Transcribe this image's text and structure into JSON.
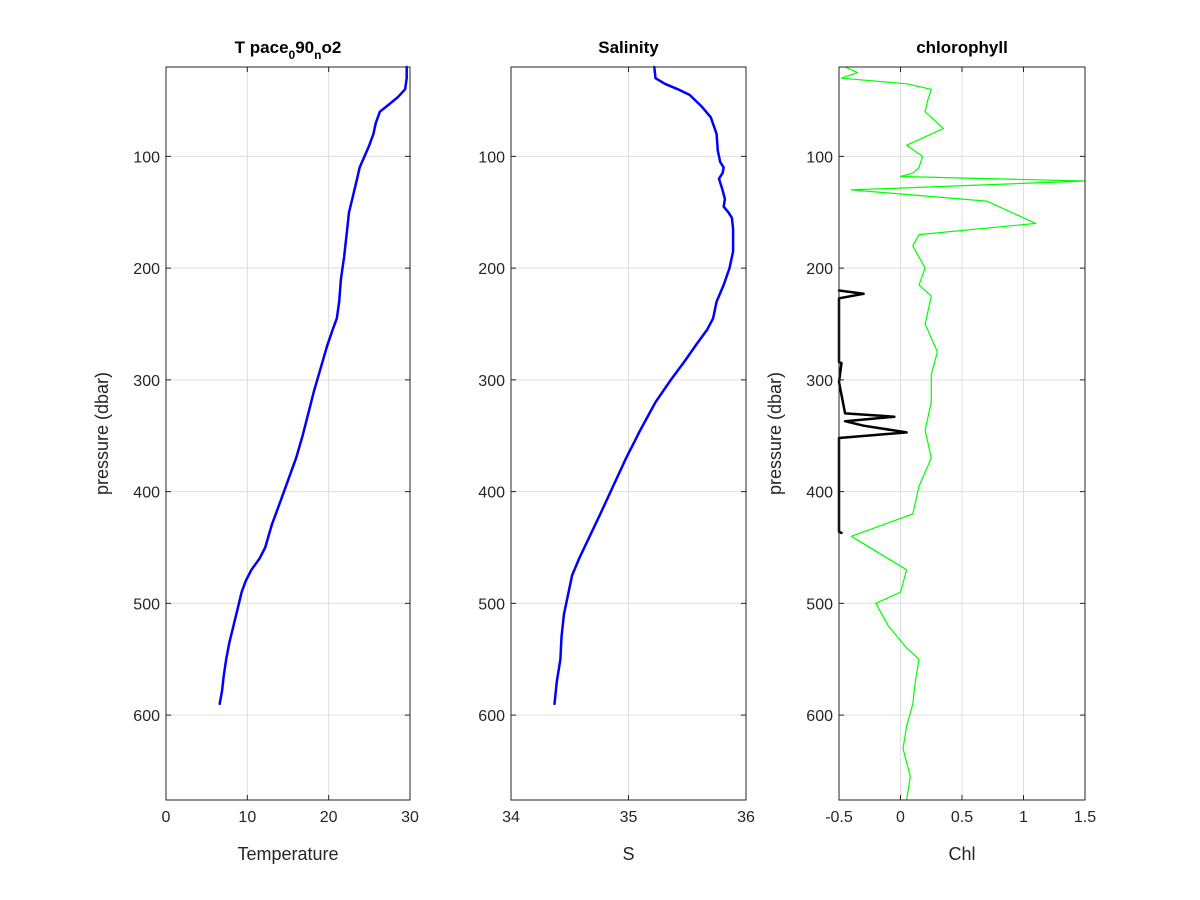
{
  "chart_data": [
    {
      "type": "line",
      "title_parts": [
        {
          "text": "T pace",
          "sub": false
        },
        {
          "text": "0",
          "sub": true
        },
        {
          "text": "90",
          "sub": false
        },
        {
          "text": "n",
          "sub": true
        },
        {
          "text": "o2",
          "sub": false
        }
      ],
      "xlabel": "Temperature",
      "ylabel": "pressure (dbar)",
      "xlim": [
        0,
        30
      ],
      "ylim": [
        20,
        676
      ],
      "y_reversed": true,
      "xticks": [
        "0",
        "10",
        "20",
        "30"
      ],
      "yticks": [
        "100",
        "200",
        "300",
        "400",
        "500",
        "600"
      ],
      "grid": true,
      "series": [
        {
          "color": "#0000ff",
          "x": [
            29.6,
            29.6,
            29.4,
            28.5,
            27.5,
            26.3,
            25.8,
            25.5,
            25.0,
            24.4,
            23.8,
            23.5,
            23.0,
            22.5,
            22.2,
            21.9,
            21.5,
            21.3,
            21.0,
            20.5,
            19.8,
            19.0,
            18.2,
            17.5,
            16.8,
            16.0,
            15.0,
            14.0,
            13.0,
            12.2,
            11.5,
            10.5,
            9.8,
            9.3,
            8.8,
            8.3,
            7.8,
            7.4,
            7.1,
            6.9,
            6.6
          ],
          "y": [
            20,
            30,
            40,
            47,
            53,
            60,
            70,
            80,
            90,
            100,
            110,
            120,
            135,
            150,
            170,
            190,
            210,
            230,
            245,
            255,
            270,
            290,
            310,
            330,
            350,
            370,
            390,
            410,
            430,
            450,
            460,
            470,
            480,
            490,
            505,
            520,
            535,
            550,
            565,
            578,
            590
          ]
        }
      ]
    },
    {
      "type": "line",
      "title": "Salinity",
      "xlabel": "S",
      "xlim": [
        34,
        36
      ],
      "ylim": [
        20,
        676
      ],
      "y_reversed": true,
      "xticks": [
        "34",
        "35",
        "36"
      ],
      "yticks": [
        "100",
        "200",
        "300",
        "400",
        "500",
        "600"
      ],
      "grid": true,
      "series": [
        {
          "color": "#ff0000",
          "x": [
            35.22,
            35.23,
            35.31,
            35.42,
            35.52,
            35.62,
            35.7,
            35.75,
            35.76,
            35.78,
            35.81,
            35.8,
            35.77,
            35.8,
            35.82,
            35.81,
            35.85,
            35.88,
            35.89,
            35.89,
            35.86,
            35.81,
            35.75,
            35.72,
            35.67,
            35.58,
            35.48,
            35.36,
            35.23,
            35.1,
            34.98,
            34.87,
            34.76,
            34.67,
            34.58,
            34.52,
            34.48,
            34.45,
            34.43,
            34.42,
            34.39,
            34.37
          ],
          "y": [
            20,
            30,
            35,
            40,
            45,
            55,
            65,
            80,
            95,
            105,
            110,
            115,
            120,
            130,
            138,
            145,
            150,
            155,
            165,
            185,
            200,
            215,
            230,
            245,
            255,
            268,
            283,
            300,
            320,
            345,
            370,
            395,
            420,
            440,
            460,
            475,
            495,
            510,
            530,
            550,
            570,
            590
          ]
        },
        {
          "color": "#0000ff",
          "x": [
            35.22,
            35.23,
            35.31,
            35.42,
            35.52,
            35.62,
            35.7,
            35.75,
            35.76,
            35.78,
            35.81,
            35.8,
            35.77,
            35.8,
            35.82,
            35.81,
            35.85,
            35.88,
            35.89,
            35.89,
            35.86,
            35.81,
            35.75,
            35.72,
            35.67,
            35.58,
            35.48,
            35.36,
            35.23,
            35.1,
            34.98,
            34.87,
            34.76,
            34.67,
            34.58,
            34.52,
            34.48,
            34.45,
            34.43,
            34.42,
            34.39,
            34.37
          ],
          "y": [
            20,
            30,
            35,
            40,
            45,
            55,
            65,
            80,
            95,
            105,
            110,
            115,
            120,
            130,
            138,
            145,
            150,
            155,
            165,
            185,
            200,
            215,
            230,
            245,
            255,
            268,
            283,
            300,
            320,
            345,
            370,
            395,
            420,
            440,
            460,
            475,
            495,
            510,
            530,
            550,
            570,
            590
          ]
        }
      ]
    },
    {
      "type": "line",
      "title": "chlorophyll",
      "xlabel": "Chl",
      "ylabel": "pressure (dbar)",
      "xlim": [
        -0.5,
        1.5
      ],
      "ylim": [
        20,
        676
      ],
      "y_reversed": true,
      "xticks": [
        "-0.5",
        "0",
        "0.5",
        "1",
        "1.5"
      ],
      "yticks": [
        "100",
        "200",
        "300",
        "400",
        "500",
        "600"
      ],
      "grid": true,
      "series": [
        {
          "color": "#00ff00",
          "x": [
            -0.45,
            -0.35,
            -0.48,
            0.05,
            0.25,
            0.22,
            0.2,
            0.35,
            0.05,
            0.18,
            0.15,
            0.1,
            0.0,
            1.5,
            -0.4,
            0.7,
            1.1,
            0.15,
            0.1,
            0.2,
            0.15,
            0.25,
            0.2,
            0.3,
            0.25,
            0.25,
            0.2,
            0.25,
            0.15,
            0.1,
            -0.4,
            0.05,
            0.0,
            -0.2,
            -0.1,
            0.05,
            0.15,
            0.12,
            0.1,
            0.05,
            0.02,
            0.08,
            0.05
          ],
          "y": [
            20,
            25,
            30,
            35,
            40,
            50,
            60,
            75,
            90,
            100,
            110,
            115,
            118,
            122,
            130,
            140,
            160,
            170,
            180,
            200,
            215,
            225,
            250,
            275,
            295,
            320,
            345,
            370,
            395,
            420,
            440,
            470,
            490,
            500,
            520,
            540,
            550,
            570,
            590,
            610,
            630,
            655,
            676
          ]
        },
        {
          "color": "#000000",
          "x": [
            -0.5,
            -0.3,
            -0.5,
            -0.5,
            -0.48,
            -0.5,
            -0.45,
            -0.05,
            -0.45,
            -0.3,
            0.05,
            -0.5,
            -0.5,
            -0.48
          ],
          "y": [
            220,
            223,
            227,
            284,
            285,
            302,
            330,
            333,
            337,
            341,
            347,
            352,
            436,
            437
          ]
        }
      ]
    }
  ]
}
